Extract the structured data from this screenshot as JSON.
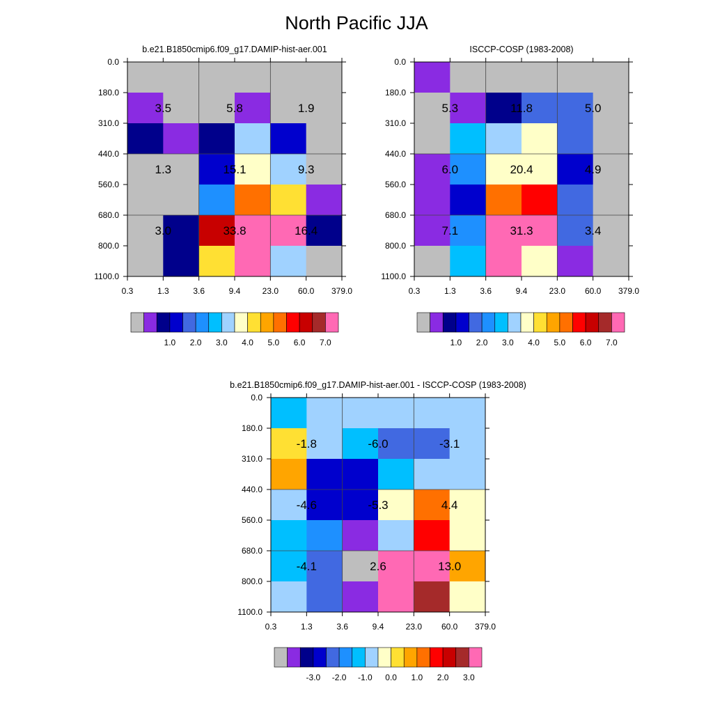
{
  "title": "North Pacific JJA",
  "colors": {
    "model_palette": [
      "#bebebe",
      "#8a2be2",
      "#00008b",
      "#0000cd",
      "#4169e1",
      "#1e90ff",
      "#00bfff",
      "#a0d2ff",
      "#ffffc8",
      "#ffe033",
      "#ffa500",
      "#ff7000",
      "#ff0000",
      "#c80000",
      "#a52a2a",
      "#ff69b4"
    ],
    "diff_palette": [
      "#bebebe",
      "#8a2be2",
      "#00008b",
      "#0000cd",
      "#4169e1",
      "#1e90ff",
      "#00bfff",
      "#a0d2ff",
      "#ffffc8",
      "#ffe033",
      "#ffa500",
      "#ff7000",
      "#ff0000",
      "#c80000",
      "#a52a2a",
      "#ff69b4"
    ]
  },
  "chart_data": [
    {
      "type": "heatmap",
      "title": "b.e21.B1850cmip6.f09_g17.DAMIP-hist-aer.001",
      "x_tick_labels": [
        "0.3",
        "1.3",
        "3.6",
        "9.4",
        "23.0",
        "60.0",
        "379.0"
      ],
      "y_tick_labels": [
        "0.0",
        "180.0",
        "310.0",
        "440.0",
        "560.0",
        "680.0",
        "800.0",
        "1100.0"
      ],
      "cells": [
        [
          0,
          0,
          0,
          0,
          0,
          0
        ],
        [
          1,
          0,
          0,
          1,
          0,
          0
        ],
        [
          2,
          1,
          2,
          7,
          3,
          0
        ],
        [
          0,
          0,
          3,
          8,
          7,
          0
        ],
        [
          0,
          0,
          5,
          11,
          9,
          1
        ],
        [
          0,
          2,
          13,
          15,
          15,
          2
        ],
        [
          0,
          2,
          9,
          15,
          7,
          0
        ]
      ],
      "annotations": [
        {
          "col": 1,
          "row": 1,
          "text": "3.5"
        },
        {
          "col": 3,
          "row": 1,
          "text": "5.8"
        },
        {
          "col": 5,
          "row": 1,
          "text": "1.9"
        },
        {
          "col": 1,
          "row": 3,
          "text": "1.3"
        },
        {
          "col": 3,
          "row": 3,
          "text": "15.1"
        },
        {
          "col": 5,
          "row": 3,
          "text": "9.3"
        },
        {
          "col": 1,
          "row": 5,
          "text": "3.0"
        },
        {
          "col": 3,
          "row": 5,
          "text": "33.8"
        },
        {
          "col": 5,
          "row": 5,
          "text": "16.4"
        }
      ],
      "colorbar_labels": [
        "1.0",
        "2.0",
        "3.0",
        "4.0",
        "5.0",
        "6.0",
        "7.0"
      ]
    },
    {
      "type": "heatmap",
      "title": "ISCCP-COSP (1983-2008)",
      "x_tick_labels": [
        "0.3",
        "1.3",
        "3.6",
        "9.4",
        "23.0",
        "60.0",
        "379.0"
      ],
      "y_tick_labels": [
        "0.0",
        "180.0",
        "310.0",
        "440.0",
        "560.0",
        "680.0",
        "800.0",
        "1100.0"
      ],
      "cells": [
        [
          1,
          0,
          0,
          0,
          0,
          0
        ],
        [
          0,
          1,
          2,
          4,
          4,
          0
        ],
        [
          0,
          6,
          7,
          8,
          4,
          0
        ],
        [
          1,
          5,
          8,
          8,
          3,
          0
        ],
        [
          1,
          3,
          11,
          12,
          4,
          0
        ],
        [
          1,
          5,
          15,
          15,
          4,
          0
        ],
        [
          0,
          6,
          15,
          8,
          1,
          0
        ]
      ],
      "annotations": [
        {
          "col": 1,
          "row": 1,
          "text": "5.3"
        },
        {
          "col": 3,
          "row": 1,
          "text": "11.8"
        },
        {
          "col": 5,
          "row": 1,
          "text": "5.0"
        },
        {
          "col": 1,
          "row": 3,
          "text": "6.0"
        },
        {
          "col": 3,
          "row": 3,
          "text": "20.4"
        },
        {
          "col": 5,
          "row": 3,
          "text": "4.9"
        },
        {
          "col": 1,
          "row": 5,
          "text": "7.1"
        },
        {
          "col": 3,
          "row": 5,
          "text": "31.3"
        },
        {
          "col": 5,
          "row": 5,
          "text": "3.4"
        }
      ],
      "colorbar_labels": [
        "1.0",
        "2.0",
        "3.0",
        "4.0",
        "5.0",
        "6.0",
        "7.0"
      ]
    },
    {
      "type": "heatmap",
      "title": "b.e21.B1850cmip6.f09_g17.DAMIP-hist-aer.001 - ISCCP-COSP (1983-2008)",
      "x_tick_labels": [
        "0.3",
        "1.3",
        "3.6",
        "9.4",
        "23.0",
        "60.0",
        "379.0"
      ],
      "y_tick_labels": [
        "0.0",
        "180.0",
        "310.0",
        "440.0",
        "560.0",
        "680.0",
        "800.0",
        "1100.0"
      ],
      "cells": [
        [
          6,
          7,
          7,
          7,
          7,
          7
        ],
        [
          9,
          7,
          6,
          4,
          4,
          7
        ],
        [
          10,
          3,
          3,
          6,
          7,
          7
        ],
        [
          7,
          3,
          3,
          8,
          11,
          8
        ],
        [
          6,
          5,
          1,
          7,
          12,
          8
        ],
        [
          6,
          4,
          0,
          15,
          15,
          10
        ],
        [
          7,
          4,
          1,
          15,
          14,
          8
        ]
      ],
      "annotations": [
        {
          "col": 1,
          "row": 1,
          "text": "-1.8"
        },
        {
          "col": 3,
          "row": 1,
          "text": "-6.0"
        },
        {
          "col": 5,
          "row": 1,
          "text": "-3.1"
        },
        {
          "col": 1,
          "row": 3,
          "text": "-4.6"
        },
        {
          "col": 3,
          "row": 3,
          "text": "-5.3"
        },
        {
          "col": 5,
          "row": 3,
          "text": "4.4"
        },
        {
          "col": 1,
          "row": 5,
          "text": "-4.1"
        },
        {
          "col": 3,
          "row": 5,
          "text": "2.6"
        },
        {
          "col": 5,
          "row": 5,
          "text": "13.0"
        }
      ],
      "colorbar_labels": [
        "-3.0",
        "-2.0",
        "-1.0",
        "0.0",
        "1.0",
        "2.0",
        "3.0"
      ]
    }
  ]
}
